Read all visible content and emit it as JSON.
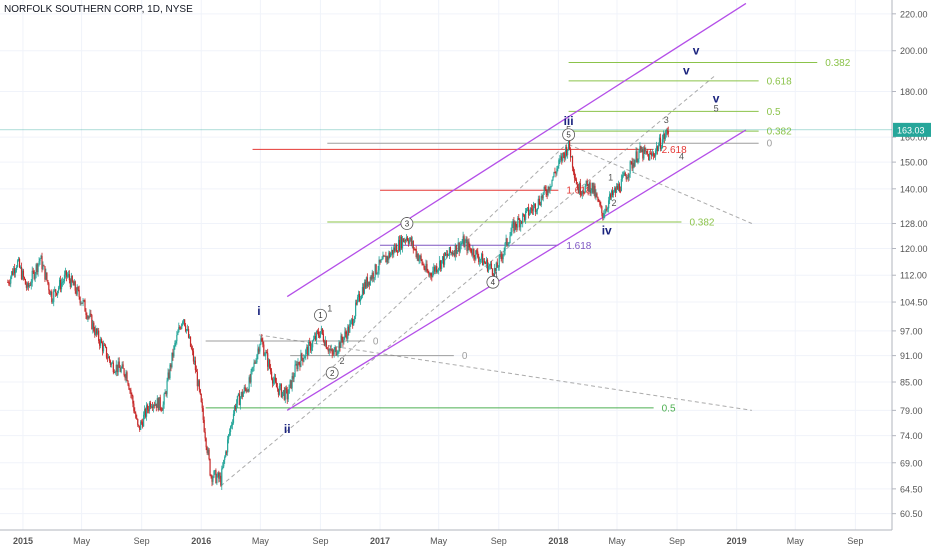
{
  "header": {
    "title": "NORFOLK SOUTHERN CORP, 1D, NYSE"
  },
  "colors": {
    "up": "#26a69a",
    "down": "#c62828",
    "channel": "#b44fe8",
    "dashed": "#888888",
    "grid": "#f0f3fa",
    "axis_text": "#555555",
    "last_price_bg": "#26a69a",
    "fib_green": "#8bc34a",
    "fib_red": "#e53935",
    "fib_blue": "#7e57c2",
    "fib_gray": "#9e9e9e"
  },
  "chart_data": {
    "type": "candlestick",
    "title": "NORFOLK SOUTHERN CORP, 1D, NYSE",
    "y_scale": "log",
    "ylim": [
      58,
      228
    ],
    "y_ticks": [
      "220.00",
      "200.00",
      "180.00",
      "163.03",
      "160.00",
      "150.00",
      "140.00",
      "128.00",
      "120.00",
      "112.00",
      "104.50",
      "97.00",
      "91.00",
      "85.00",
      "79.00",
      "74.00",
      "69.00",
      "64.50",
      "60.50"
    ],
    "x_ticks": [
      "2015",
      "May",
      "Sep",
      "2016",
      "May",
      "Sep",
      "2017",
      "May",
      "Sep",
      "2018",
      "May",
      "Sep",
      "2019",
      "May",
      "Sep"
    ],
    "last_price": "163.03",
    "price_path": [
      [
        "2014-12-01",
        110
      ],
      [
        "2014-12-20",
        116
      ],
      [
        "2015-01-10",
        108
      ],
      [
        "2015-02-05",
        117
      ],
      [
        "2015-03-01",
        106
      ],
      [
        "2015-04-01",
        112
      ],
      [
        "2015-05-01",
        105
      ],
      [
        "2015-06-01",
        96
      ],
      [
        "2015-07-01",
        89
      ],
      [
        "2015-08-01",
        87
      ],
      [
        "2015-08-25",
        75
      ],
      [
        "2015-09-20",
        81
      ],
      [
        "2015-10-15",
        80
      ],
      [
        "2015-11-05",
        92
      ],
      [
        "2015-11-25",
        101
      ],
      [
        "2015-12-20",
        88
      ],
      [
        "2016-01-20",
        67
      ],
      [
        "2016-02-10",
        66
      ],
      [
        "2016-03-10",
        80
      ],
      [
        "2016-04-10",
        85
      ],
      [
        "2016-05-01",
        95
      ],
      [
        "2016-06-01",
        84
      ],
      [
        "2016-06-25",
        82
      ],
      [
        "2016-07-15",
        89
      ],
      [
        "2016-08-10",
        93
      ],
      [
        "2016-09-01",
        97
      ],
      [
        "2016-09-25",
        91
      ],
      [
        "2016-11-01",
        98
      ],
      [
        "2016-11-25",
        108
      ],
      [
        "2016-12-20",
        113
      ],
      [
        "2017-02-01",
        120
      ],
      [
        "2017-02-25",
        124
      ],
      [
        "2017-04-10",
        112
      ],
      [
        "2017-05-20",
        118
      ],
      [
        "2017-06-20",
        122
      ],
      [
        "2017-08-01",
        116
      ],
      [
        "2017-08-25",
        113
      ],
      [
        "2017-10-01",
        127
      ],
      [
        "2017-11-15",
        134
      ],
      [
        "2017-12-10",
        140
      ],
      [
        "2018-01-22",
        157
      ],
      [
        "2018-02-10",
        140
      ],
      [
        "2018-03-10",
        141
      ],
      [
        "2018-04-01",
        131
      ],
      [
        "2018-04-15",
        136
      ],
      [
        "2018-05-10",
        142
      ],
      [
        "2018-06-15",
        154
      ],
      [
        "2018-07-10",
        152
      ],
      [
        "2018-08-15",
        163
      ]
    ],
    "channel_lines": [
      {
        "name": "upper-channel",
        "from": [
          "2016-06-25",
          106
        ],
        "to": [
          "2019-01-20",
          226
        ]
      },
      {
        "name": "lower-channel",
        "from": [
          "2016-06-25",
          79
        ],
        "to": [
          "2019-01-20",
          163
        ]
      }
    ],
    "fib_levels": [
      {
        "from": "2018-01-22",
        "to": "2019-06-15",
        "y": 194,
        "color": "#8bc34a",
        "label": "0.382"
      },
      {
        "from": "2018-01-22",
        "to": "2019-02-15",
        "y": 185,
        "color": "#8bc34a",
        "label": "0.618"
      },
      {
        "from": "2018-01-22",
        "to": "2019-02-15",
        "y": 171,
        "color": "#8bc34a",
        "label": "0.5"
      },
      {
        "from": "2018-01-22",
        "to": "2019-02-15",
        "y": 162.5,
        "color": "#8bc34a",
        "label": "0.382"
      },
      {
        "from": "2016-09-15",
        "to": "2019-02-15",
        "y": 157.5,
        "color": "#9e9e9e",
        "label": "0"
      },
      {
        "from": "2016-04-15",
        "to": "2018-07-15",
        "y": 155,
        "color": "#e53935",
        "label": "2.618"
      },
      {
        "from": "2017-01-01",
        "to": "2018-01-01",
        "y": 139.5,
        "color": "#e53935",
        "label": "1.618"
      },
      {
        "from": "2016-09-15",
        "to": "2018-09-10",
        "y": 128.5,
        "color": "#8bc34a",
        "label": "0.382"
      },
      {
        "from": "2017-01-01",
        "to": "2018-01-01",
        "y": 121,
        "color": "#7e57c2",
        "label": "1.618"
      },
      {
        "from": "2016-01-10",
        "to": "2016-12-01",
        "y": 94.5,
        "color": "#9e9e9e",
        "label": "0"
      },
      {
        "from": "2016-07-01",
        "to": "2017-06-01",
        "y": 91,
        "color": "#9e9e9e",
        "label": "0"
      },
      {
        "from": "2016-01-10",
        "to": "2018-07-15",
        "y": 79.5,
        "color": "#4caf50",
        "label": "0.5"
      }
    ],
    "wave_labels": [
      {
        "text": "i",
        "date": "2016-04-28",
        "y": 101
      },
      {
        "text": "ii",
        "date": "2016-06-25",
        "y": 74.5
      },
      {
        "text": "iii",
        "date": "2018-01-22",
        "y": 165
      },
      {
        "text": "iv",
        "date": "2018-04-10",
        "y": 124.5
      },
      {
        "text": "v",
        "date": "2018-10-10",
        "y": 198
      },
      {
        "text": "v",
        "date": "2018-09-20",
        "y": 188
      },
      {
        "text": "v",
        "date": "2018-11-20",
        "y": 175
      },
      {
        "text": "3",
        "date": "2018-08-10",
        "y": 166
      },
      {
        "text": "5",
        "date": "2018-11-20",
        "y": 171
      },
      {
        "text": "4",
        "date": "2018-09-10",
        "y": 151
      },
      {
        "text": "1",
        "date": "2018-04-18",
        "y": 143
      },
      {
        "text": "2",
        "date": "2018-04-25",
        "y": 134
      },
      {
        "text": "1",
        "date": "2016-09-20",
        "y": 102
      },
      {
        "text": "2",
        "date": "2016-10-15",
        "y": 89
      },
      {
        "text": "3",
        "date": "2017-02-25",
        "y": 128
      },
      {
        "text": "4",
        "date": "2017-08-25",
        "y": 111
      },
      {
        "text": "5",
        "date": "2018-01-22",
        "y": 162
      }
    ],
    "circled_labels": [
      "1",
      "2",
      "3",
      "4",
      "5"
    ]
  }
}
